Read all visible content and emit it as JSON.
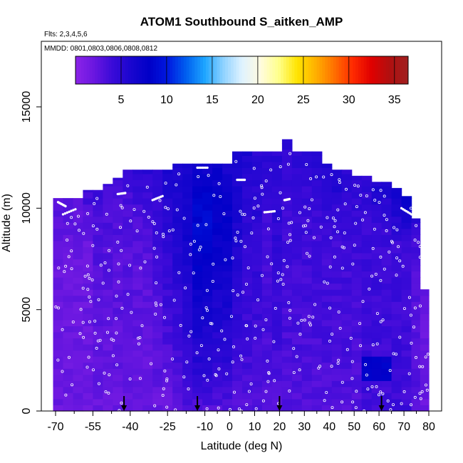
{
  "chart_data": {
    "type": "heatmap",
    "title": "ATOM1 Southbound S_aitken_AMP",
    "flights_note": "Flts: 2,3,4,5,6",
    "dates_note": "MMDD: 0801,0803,0806,0808,0812",
    "xlabel": "Latitude (deg N)",
    "ylabel": "Altitude (m)",
    "xlim": [
      -70,
      80
    ],
    "ylim": [
      0,
      17000
    ],
    "x_tick_labels": [
      "-70",
      "-55",
      "-40",
      "-25",
      "-10",
      "0",
      "10",
      "20",
      "30",
      "40",
      "50",
      "60",
      "70",
      "80"
    ],
    "x_tick_values": [
      -70,
      -55,
      -40,
      -25,
      -10,
      0,
      10,
      20,
      30,
      40,
      50,
      60,
      70,
      80
    ],
    "y_tick_labels": [
      "0",
      "5000",
      "10000",
      "15000"
    ],
    "y_tick_values": [
      0,
      5000,
      10000,
      15000
    ],
    "colorbar": {
      "min": 0,
      "max": 36.5,
      "tick_labels": [
        "5",
        "10",
        "15",
        "20",
        "25",
        "30",
        "35"
      ],
      "tick_values": [
        5,
        10,
        15,
        20,
        25,
        30,
        35
      ],
      "colors": [
        "#8b24e8",
        "#6a17e0",
        "#3a0ad8",
        "#1a06cf",
        "#0000c8",
        "#0019e0",
        "#0060f0",
        "#1ea6ff",
        "#8fd2ff",
        "#dff2ff",
        "#fffbe0",
        "#ffff8a",
        "#ffe400",
        "#ffb000",
        "#ff7000",
        "#ff2a00",
        "#e00000",
        "#b01010",
        "#a02020"
      ]
    },
    "arrow_latitudes": [
      -42.5,
      -13,
      20,
      61
    ],
    "grid": false,
    "legend": "colorbar at top of plot area",
    "profiles": [
      {
        "lat": -69,
        "top": 10500,
        "surface": 2,
        "mid": 2,
        "upper": 3
      },
      {
        "lat": -65,
        "top": 10500,
        "surface": 2,
        "mid": 2,
        "upper": 3
      },
      {
        "lat": -61,
        "top": 10500,
        "surface": 2,
        "mid": 2,
        "upper": 3
      },
      {
        "lat": -57,
        "top": 10900,
        "surface": 2,
        "mid": 2,
        "upper": 4
      },
      {
        "lat": -53,
        "top": 10900,
        "surface": 2,
        "mid": 3,
        "upper": 4
      },
      {
        "lat": -49,
        "top": 11200,
        "surface": 2,
        "mid": 3,
        "upper": 4
      },
      {
        "lat": -45,
        "top": 11500,
        "surface": 2,
        "mid": 3,
        "upper": 4
      },
      {
        "lat": -41,
        "top": 11900,
        "surface": 2,
        "mid": 3,
        "upper": 4
      },
      {
        "lat": -37,
        "top": 11900,
        "surface": 2,
        "mid": 3,
        "upper": 5
      },
      {
        "lat": -33,
        "top": 11900,
        "surface": 2,
        "mid": 3,
        "upper": 5
      },
      {
        "lat": -29,
        "top": 11900,
        "surface": 2,
        "mid": 4,
        "upper": 5
      },
      {
        "lat": -25,
        "top": 11900,
        "surface": 2,
        "mid": 5,
        "upper": 6
      },
      {
        "lat": -21,
        "top": 12200,
        "surface": 2,
        "mid": 6,
        "upper": 6
      },
      {
        "lat": -17,
        "top": 12200,
        "surface": 3,
        "mid": 7,
        "upper": 6
      },
      {
        "lat": -13,
        "top": 12200,
        "surface": 3,
        "mid": 9,
        "upper": 7
      },
      {
        "lat": -9,
        "top": 12200,
        "surface": 3,
        "mid": 9,
        "upper": 7
      },
      {
        "lat": -5,
        "top": 12200,
        "surface": 3,
        "mid": 8,
        "upper": 7
      },
      {
        "lat": -1,
        "top": 12200,
        "surface": 3,
        "mid": 8,
        "upper": 6
      },
      {
        "lat": 3,
        "top": 12800,
        "surface": 3,
        "mid": 6,
        "upper": 6
      },
      {
        "lat": 7,
        "top": 12800,
        "surface": 3,
        "mid": 5,
        "upper": 6
      },
      {
        "lat": 11,
        "top": 12800,
        "surface": 3,
        "mid": 5,
        "upper": 5
      },
      {
        "lat": 15,
        "top": 12800,
        "surface": 3,
        "mid": 4,
        "upper": 5
      },
      {
        "lat": 19,
        "top": 12800,
        "surface": 3,
        "mid": 5,
        "upper": 5
      },
      {
        "lat": 23,
        "top": 13400,
        "surface": 3,
        "mid": 4,
        "upper": 5
      },
      {
        "lat": 27,
        "top": 12800,
        "surface": 3,
        "mid": 4,
        "upper": 5
      },
      {
        "lat": 31,
        "top": 12800,
        "surface": 3,
        "mid": 4,
        "upper": 5
      },
      {
        "lat": 35,
        "top": 12800,
        "surface": 3,
        "mid": 4,
        "upper": 6
      },
      {
        "lat": 39,
        "top": 12200,
        "surface": 3,
        "mid": 4,
        "upper": 6
      },
      {
        "lat": 43,
        "top": 11900,
        "surface": 3,
        "mid": 4,
        "upper": 6
      },
      {
        "lat": 47,
        "top": 11900,
        "surface": 3,
        "mid": 4,
        "upper": 5
      },
      {
        "lat": 51,
        "top": 11600,
        "surface": 3,
        "mid": 4,
        "upper": 5
      },
      {
        "lat": 55,
        "top": 11600,
        "surface": 4,
        "mid": 4,
        "upper": 5
      },
      {
        "lat": 59,
        "top": 11300,
        "surface": 4,
        "mid": 4,
        "upper": 6
      },
      {
        "lat": 63,
        "top": 11300,
        "surface": 4,
        "mid": 4,
        "upper": 6
      },
      {
        "lat": 67,
        "top": 11000,
        "surface": 4,
        "mid": 4,
        "upper": 7
      },
      {
        "lat": 71,
        "top": 10600,
        "surface": 4,
        "mid": 4,
        "upper": 8
      },
      {
        "lat": 75,
        "top": 9500,
        "surface": 3,
        "mid": 3,
        "upper": 5
      },
      {
        "lat": 78,
        "top": 6000,
        "surface": 2,
        "mid": 2,
        "upper": 3
      }
    ],
    "anomaly": {
      "lat_range": [
        55,
        64
      ],
      "alt_range": [
        1600,
        2600
      ],
      "value": 8
    }
  }
}
